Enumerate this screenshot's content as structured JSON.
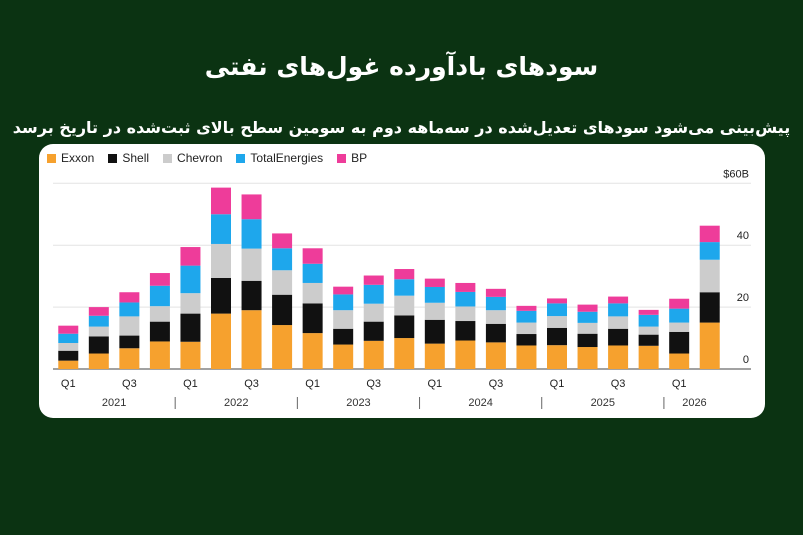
{
  "title": "سودهای بادآورده غول‌های نفتی",
  "subtitle": "پیش‌بینی می‌شود سودهای تعدیل‌شده در سه‌ماهه دوم به سومین سطح بالای ثبت‌شده در تاریخ برسد",
  "chart_data": {
    "type": "bar",
    "stacked": true,
    "categories": [
      "Q1 2021",
      "Q2 2021",
      "Q3 2021",
      "Q4 2021",
      "Q1 2022",
      "Q2 2022",
      "Q3 2022",
      "Q4 2022",
      "Q1 2023",
      "Q2 2023",
      "Q3 2023",
      "Q4 2023",
      "Q1 2024",
      "Q2 2024",
      "Q3 2024",
      "Q4 2024",
      "Q1 2025",
      "Q2 2025",
      "Q3 2025",
      "Q4 2025",
      "Q1 2026",
      "Q2 2026"
    ],
    "x_tick_labels": [
      "Q1",
      "",
      "Q3",
      "",
      "Q1",
      "",
      "Q3",
      "",
      "Q1",
      "",
      "Q3",
      "",
      "Q1",
      "",
      "Q3",
      "",
      "Q1",
      "",
      "Q3",
      "",
      "Q1",
      ""
    ],
    "year_labels": [
      "2021",
      "2022",
      "2023",
      "2024",
      "2025",
      "2026"
    ],
    "year_groups": [
      [
        0,
        3
      ],
      [
        4,
        7
      ],
      [
        8,
        11
      ],
      [
        12,
        15
      ],
      [
        16,
        19
      ],
      [
        20,
        21
      ]
    ],
    "y_ticks": [
      0,
      20,
      40,
      60
    ],
    "y_tick_labels": [
      "0",
      "20",
      "40",
      "$60B"
    ],
    "ylim": [
      0,
      63
    ],
    "grid": true,
    "legend_position": "top-left",
    "series": [
      {
        "name": "Exxon",
        "color": "#f6a12e",
        "values": [
          2.7,
          5.0,
          6.7,
          8.9,
          8.8,
          17.9,
          19.0,
          14.2,
          11.6,
          7.9,
          9.1,
          10.0,
          8.2,
          9.2,
          8.6,
          7.6,
          7.7,
          7.1,
          7.6,
          7.5,
          5.0,
          15.0
        ]
      },
      {
        "name": "Shell",
        "color": "#111111",
        "values": [
          3.2,
          5.5,
          4.1,
          6.4,
          9.1,
          11.5,
          9.5,
          9.8,
          9.6,
          5.1,
          6.2,
          7.3,
          7.7,
          6.3,
          6.0,
          3.7,
          5.6,
          4.3,
          5.4,
          3.6,
          7.0,
          9.8
        ]
      },
      {
        "name": "Chevron",
        "color": "#cccccc",
        "values": [
          2.5,
          3.2,
          6.2,
          5.0,
          6.6,
          11.0,
          10.4,
          7.9,
          6.6,
          6.0,
          5.8,
          6.4,
          5.5,
          4.7,
          4.4,
          3.7,
          3.8,
          3.5,
          4.0,
          2.6,
          3.0,
          10.5
        ]
      },
      {
        "name": "TotalEnergies",
        "color": "#1ea7ec",
        "values": [
          3.0,
          3.5,
          4.5,
          6.6,
          8.9,
          9.6,
          9.5,
          7.1,
          6.2,
          5.1,
          6.1,
          5.3,
          5.1,
          4.7,
          4.3,
          3.8,
          4.1,
          3.6,
          4.2,
          3.8,
          4.5,
          5.7
        ]
      },
      {
        "name": "BP",
        "color": "#ee3c9a",
        "values": [
          2.6,
          2.8,
          3.3,
          4.1,
          6.0,
          8.6,
          8.0,
          4.8,
          5.0,
          2.5,
          3.0,
          3.3,
          2.7,
          2.9,
          2.6,
          1.6,
          1.6,
          2.3,
          2.2,
          1.6,
          3.2,
          5.3
        ]
      }
    ]
  }
}
